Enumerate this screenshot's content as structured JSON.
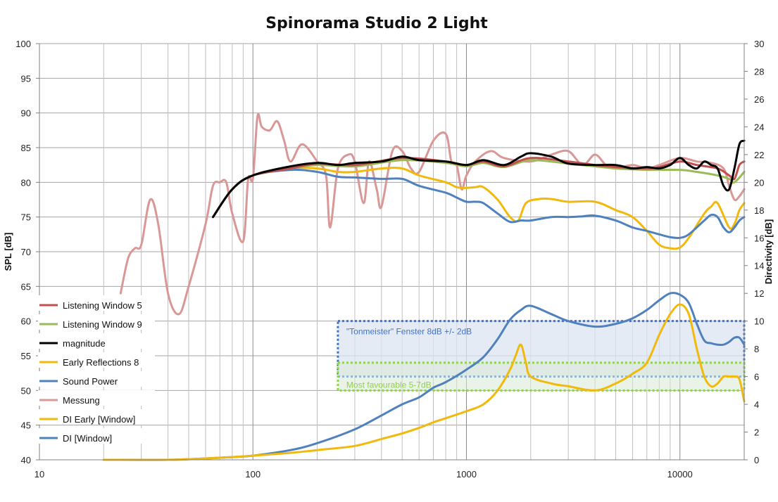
{
  "chart_data": {
    "type": "line",
    "title": "Spinorama Studio 2 Light",
    "xlabel": "",
    "ylabel": "SPL [dB]",
    "y2label": "Directivity [dB]",
    "x_scale": "log",
    "xlim": [
      10,
      20000
    ],
    "ylim": [
      40,
      100
    ],
    "y2lim": [
      0,
      30
    ],
    "grid": true,
    "legend": "bottom-left",
    "x_ticks": [
      "10",
      "100",
      "1000",
      "10000"
    ],
    "y_ticks": [
      "40",
      "45",
      "50",
      "55",
      "60",
      "65",
      "70",
      "75",
      "80",
      "85",
      "90",
      "95",
      "100"
    ],
    "y2_ticks": [
      "0",
      "2",
      "4",
      "6",
      "8",
      "10",
      "12",
      "14",
      "16",
      "18",
      "20",
      "22",
      "24",
      "26",
      "28",
      "30"
    ],
    "series": [
      {
        "name": "Listening Window 5",
        "axis": "left",
        "color": "#c0504d",
        "points": [
          [
            65,
            75
          ],
          [
            80,
            79
          ],
          [
            100,
            81
          ],
          [
            150,
            82
          ],
          [
            200,
            82.7
          ],
          [
            300,
            82.5
          ],
          [
            500,
            83.5
          ],
          [
            800,
            83
          ],
          [
            1000,
            82.5
          ],
          [
            1200,
            83
          ],
          [
            1500,
            82.3
          ],
          [
            2000,
            83.5
          ],
          [
            3000,
            83
          ],
          [
            4000,
            82.5
          ],
          [
            5000,
            82.2
          ],
          [
            7000,
            82
          ],
          [
            8000,
            82.2
          ],
          [
            10000,
            83
          ],
          [
            12000,
            82.5
          ],
          [
            15000,
            82
          ],
          [
            17000,
            81
          ],
          [
            18000,
            80.5
          ],
          [
            19000,
            82.5
          ],
          [
            20000,
            83
          ]
        ]
      },
      {
        "name": "Listening Window 9",
        "axis": "left",
        "color": "#9bbb59",
        "points": [
          [
            65,
            75
          ],
          [
            80,
            79
          ],
          [
            100,
            81
          ],
          [
            150,
            82
          ],
          [
            200,
            82.5
          ],
          [
            300,
            82.3
          ],
          [
            500,
            83.2
          ],
          [
            800,
            82.8
          ],
          [
            1000,
            82.3
          ],
          [
            1200,
            82.8
          ],
          [
            1500,
            82.2
          ],
          [
            2000,
            83.2
          ],
          [
            3000,
            82.7
          ],
          [
            4000,
            82.3
          ],
          [
            5000,
            82
          ],
          [
            7000,
            81.8
          ],
          [
            10000,
            81.8
          ],
          [
            12000,
            81.5
          ],
          [
            15000,
            81
          ],
          [
            17000,
            80.5
          ],
          [
            18000,
            80
          ],
          [
            20000,
            81.5
          ]
        ]
      },
      {
        "name": "magnitude",
        "axis": "left",
        "color": "#000000",
        "points": [
          [
            65,
            75
          ],
          [
            80,
            79
          ],
          [
            100,
            81
          ],
          [
            150,
            82.3
          ],
          [
            200,
            82.8
          ],
          [
            250,
            82.5
          ],
          [
            300,
            82.8
          ],
          [
            400,
            83
          ],
          [
            500,
            83.7
          ],
          [
            600,
            83.2
          ],
          [
            800,
            83
          ],
          [
            1000,
            82.5
          ],
          [
            1200,
            83.2
          ],
          [
            1500,
            82.5
          ],
          [
            1800,
            83.7
          ],
          [
            2000,
            84.2
          ],
          [
            2500,
            83.7
          ],
          [
            3000,
            82.7
          ],
          [
            4000,
            82.5
          ],
          [
            5000,
            82.5
          ],
          [
            6000,
            82
          ],
          [
            7000,
            82.2
          ],
          [
            8000,
            82
          ],
          [
            9000,
            82.5
          ],
          [
            10000,
            83.5
          ],
          [
            11000,
            82.5
          ],
          [
            12000,
            82
          ],
          [
            13000,
            83
          ],
          [
            14000,
            82.5
          ],
          [
            15000,
            82
          ],
          [
            16000,
            79.5
          ],
          [
            17000,
            79
          ],
          [
            18000,
            82
          ],
          [
            19000,
            85.5
          ],
          [
            20000,
            86
          ]
        ]
      },
      {
        "name": "Early Reflections 8",
        "axis": "left",
        "color": "#f2b90d",
        "points": [
          [
            65,
            75
          ],
          [
            80,
            79
          ],
          [
            100,
            81
          ],
          [
            150,
            82
          ],
          [
            200,
            82
          ],
          [
            250,
            81.5
          ],
          [
            300,
            81.5
          ],
          [
            400,
            82
          ],
          [
            500,
            82
          ],
          [
            600,
            81
          ],
          [
            800,
            80
          ],
          [
            900,
            79.3
          ],
          [
            1000,
            79.2
          ],
          [
            1100,
            79.3
          ],
          [
            1200,
            79.3
          ],
          [
            1400,
            77.5
          ],
          [
            1600,
            75
          ],
          [
            1750,
            74.5
          ],
          [
            1900,
            77
          ],
          [
            2200,
            77.6
          ],
          [
            2500,
            77.6
          ],
          [
            3000,
            77.2
          ],
          [
            4000,
            77.2
          ],
          [
            5000,
            76
          ],
          [
            6000,
            75
          ],
          [
            7000,
            73
          ],
          [
            8000,
            71
          ],
          [
            9000,
            70.5
          ],
          [
            10000,
            70.6
          ],
          [
            11000,
            72
          ],
          [
            13000,
            75.5
          ],
          [
            14000,
            76.5
          ],
          [
            15000,
            77
          ],
          [
            17000,
            73.5
          ],
          [
            18000,
            74
          ],
          [
            19000,
            76
          ],
          [
            20000,
            77
          ]
        ]
      },
      {
        "name": "Sound Power",
        "axis": "left",
        "color": "#4f81bd",
        "points": [
          [
            65,
            75
          ],
          [
            80,
            79
          ],
          [
            100,
            81
          ],
          [
            150,
            81.8
          ],
          [
            200,
            81.5
          ],
          [
            250,
            80.8
          ],
          [
            300,
            80.7
          ],
          [
            400,
            80.5
          ],
          [
            500,
            80.5
          ],
          [
            600,
            79.5
          ],
          [
            800,
            78.5
          ],
          [
            900,
            77.8
          ],
          [
            1000,
            77.2
          ],
          [
            1100,
            77.2
          ],
          [
            1200,
            77
          ],
          [
            1400,
            75.5
          ],
          [
            1600,
            74.3
          ],
          [
            1800,
            74.5
          ],
          [
            2000,
            74.5
          ],
          [
            2500,
            75
          ],
          [
            3000,
            75
          ],
          [
            3500,
            75.1
          ],
          [
            4000,
            75.2
          ],
          [
            5000,
            74.5
          ],
          [
            6000,
            73.5
          ],
          [
            7000,
            73
          ],
          [
            8000,
            72.5
          ],
          [
            9000,
            72.1
          ],
          [
            10000,
            72
          ],
          [
            11000,
            72.5
          ],
          [
            13000,
            74.5
          ],
          [
            14000,
            75.3
          ],
          [
            15000,
            75
          ],
          [
            16000,
            73.5
          ],
          [
            17000,
            72.8
          ],
          [
            18000,
            73.5
          ],
          [
            19000,
            74.5
          ],
          [
            20000,
            75
          ]
        ]
      },
      {
        "name": "Messung",
        "axis": "left",
        "color": "#d99795",
        "points": [
          [
            24,
            64
          ],
          [
            26,
            69
          ],
          [
            28,
            70.5
          ],
          [
            30,
            71
          ],
          [
            33,
            77.5
          ],
          [
            36,
            74
          ],
          [
            40,
            64
          ],
          [
            45,
            61
          ],
          [
            50,
            65
          ],
          [
            60,
            74
          ],
          [
            65,
            79.5
          ],
          [
            70,
            80
          ],
          [
            75,
            80
          ],
          [
            80,
            75.5
          ],
          [
            90,
            71.5
          ],
          [
            95,
            80.5
          ],
          [
            100,
            80.5
          ],
          [
            105,
            89.5
          ],
          [
            110,
            88
          ],
          [
            120,
            87.5
          ],
          [
            130,
            88.8
          ],
          [
            140,
            86
          ],
          [
            150,
            83
          ],
          [
            170,
            85.5
          ],
          [
            200,
            83
          ],
          [
            220,
            81
          ],
          [
            230,
            73.5
          ],
          [
            250,
            82
          ],
          [
            280,
            84
          ],
          [
            300,
            83
          ],
          [
            330,
            77
          ],
          [
            350,
            83
          ],
          [
            380,
            79
          ],
          [
            400,
            76.5
          ],
          [
            450,
            84.5
          ],
          [
            500,
            84.5
          ],
          [
            550,
            82
          ],
          [
            600,
            81.5
          ],
          [
            700,
            86
          ],
          [
            800,
            87
          ],
          [
            850,
            83
          ],
          [
            900,
            82.5
          ],
          [
            950,
            79
          ],
          [
            1000,
            81
          ],
          [
            1100,
            83
          ],
          [
            1300,
            84.5
          ],
          [
            1500,
            83.5
          ],
          [
            2000,
            83
          ],
          [
            2500,
            84
          ],
          [
            3000,
            84.5
          ],
          [
            3500,
            82.5
          ],
          [
            4000,
            84
          ],
          [
            4500,
            82.5
          ],
          [
            5000,
            82
          ],
          [
            6000,
            82.5
          ],
          [
            7000,
            82
          ],
          [
            8000,
            82.5
          ],
          [
            10000,
            83.5
          ],
          [
            12000,
            83
          ],
          [
            14000,
            82.8
          ],
          [
            16000,
            82
          ],
          [
            17000,
            79.5
          ],
          [
            18000,
            77.5
          ],
          [
            19000,
            78
          ],
          [
            20000,
            79
          ]
        ]
      },
      {
        "name": "DI Early [Window]",
        "axis": "right",
        "color": "#f2b90d",
        "points": [
          [
            20,
            0
          ],
          [
            40,
            0
          ],
          [
            60,
            0.1
          ],
          [
            80,
            0.2
          ],
          [
            100,
            0.3
          ],
          [
            150,
            0.5
          ],
          [
            200,
            0.7
          ],
          [
            300,
            1
          ],
          [
            400,
            1.5
          ],
          [
            500,
            1.9
          ],
          [
            600,
            2.3
          ],
          [
            700,
            2.7
          ],
          [
            800,
            3
          ],
          [
            1000,
            3.5
          ],
          [
            1200,
            4
          ],
          [
            1400,
            5
          ],
          [
            1600,
            6.5
          ],
          [
            1700,
            7.5
          ],
          [
            1800,
            8.3
          ],
          [
            1900,
            7
          ],
          [
            2000,
            6
          ],
          [
            2500,
            5.5
          ],
          [
            3000,
            5.3
          ],
          [
            4000,
            5
          ],
          [
            5000,
            5.5
          ],
          [
            6000,
            6.2
          ],
          [
            7000,
            7
          ],
          [
            8000,
            9
          ],
          [
            9000,
            10.5
          ],
          [
            10000,
            11.2
          ],
          [
            11000,
            10.5
          ],
          [
            12000,
            8
          ],
          [
            13000,
            6
          ],
          [
            14000,
            5.3
          ],
          [
            15000,
            5.5
          ],
          [
            16000,
            6
          ],
          [
            17000,
            6
          ],
          [
            18000,
            6
          ],
          [
            19000,
            5.8
          ],
          [
            20000,
            4.2
          ]
        ]
      },
      {
        "name": "DI [Window]",
        "axis": "right",
        "color": "#4f81bd",
        "points": [
          [
            20,
            0
          ],
          [
            40,
            0
          ],
          [
            60,
            0.1
          ],
          [
            80,
            0.2
          ],
          [
            100,
            0.3
          ],
          [
            150,
            0.7
          ],
          [
            200,
            1.2
          ],
          [
            300,
            2.2
          ],
          [
            400,
            3.2
          ],
          [
            500,
            4
          ],
          [
            600,
            4.5
          ],
          [
            700,
            5.2
          ],
          [
            800,
            5.6
          ],
          [
            1000,
            6.5
          ],
          [
            1200,
            7.4
          ],
          [
            1400,
            8.7
          ],
          [
            1600,
            10.1
          ],
          [
            1800,
            10.8
          ],
          [
            2000,
            11.1
          ],
          [
            2500,
            10.5
          ],
          [
            3000,
            10
          ],
          [
            4000,
            9.6
          ],
          [
            5000,
            9.8
          ],
          [
            6000,
            10.2
          ],
          [
            7000,
            10.8
          ],
          [
            8000,
            11.5
          ],
          [
            9000,
            12
          ],
          [
            10000,
            11.9
          ],
          [
            11000,
            11.3
          ],
          [
            12000,
            9.8
          ],
          [
            13000,
            8.6
          ],
          [
            14000,
            8.4
          ],
          [
            15000,
            8.3
          ],
          [
            16000,
            8.3
          ],
          [
            17000,
            8.5
          ],
          [
            18000,
            8.8
          ],
          [
            19000,
            8.8
          ],
          [
            20000,
            8.3
          ]
        ]
      }
    ],
    "annotations": [
      {
        "text": "\"Tonmeister\" Fenster 8dB +/- 2dB",
        "x_range": [
          250,
          20000
        ],
        "y2_range": [
          6,
          10
        ],
        "color": "#4472c4",
        "fill": "#dbe4f1"
      },
      {
        "text": "Most favourable 5-7dB",
        "x_range": [
          250,
          20000
        ],
        "y2_range": [
          5,
          7
        ],
        "color": "#92d050",
        "fill": "#d9ead3"
      }
    ]
  }
}
